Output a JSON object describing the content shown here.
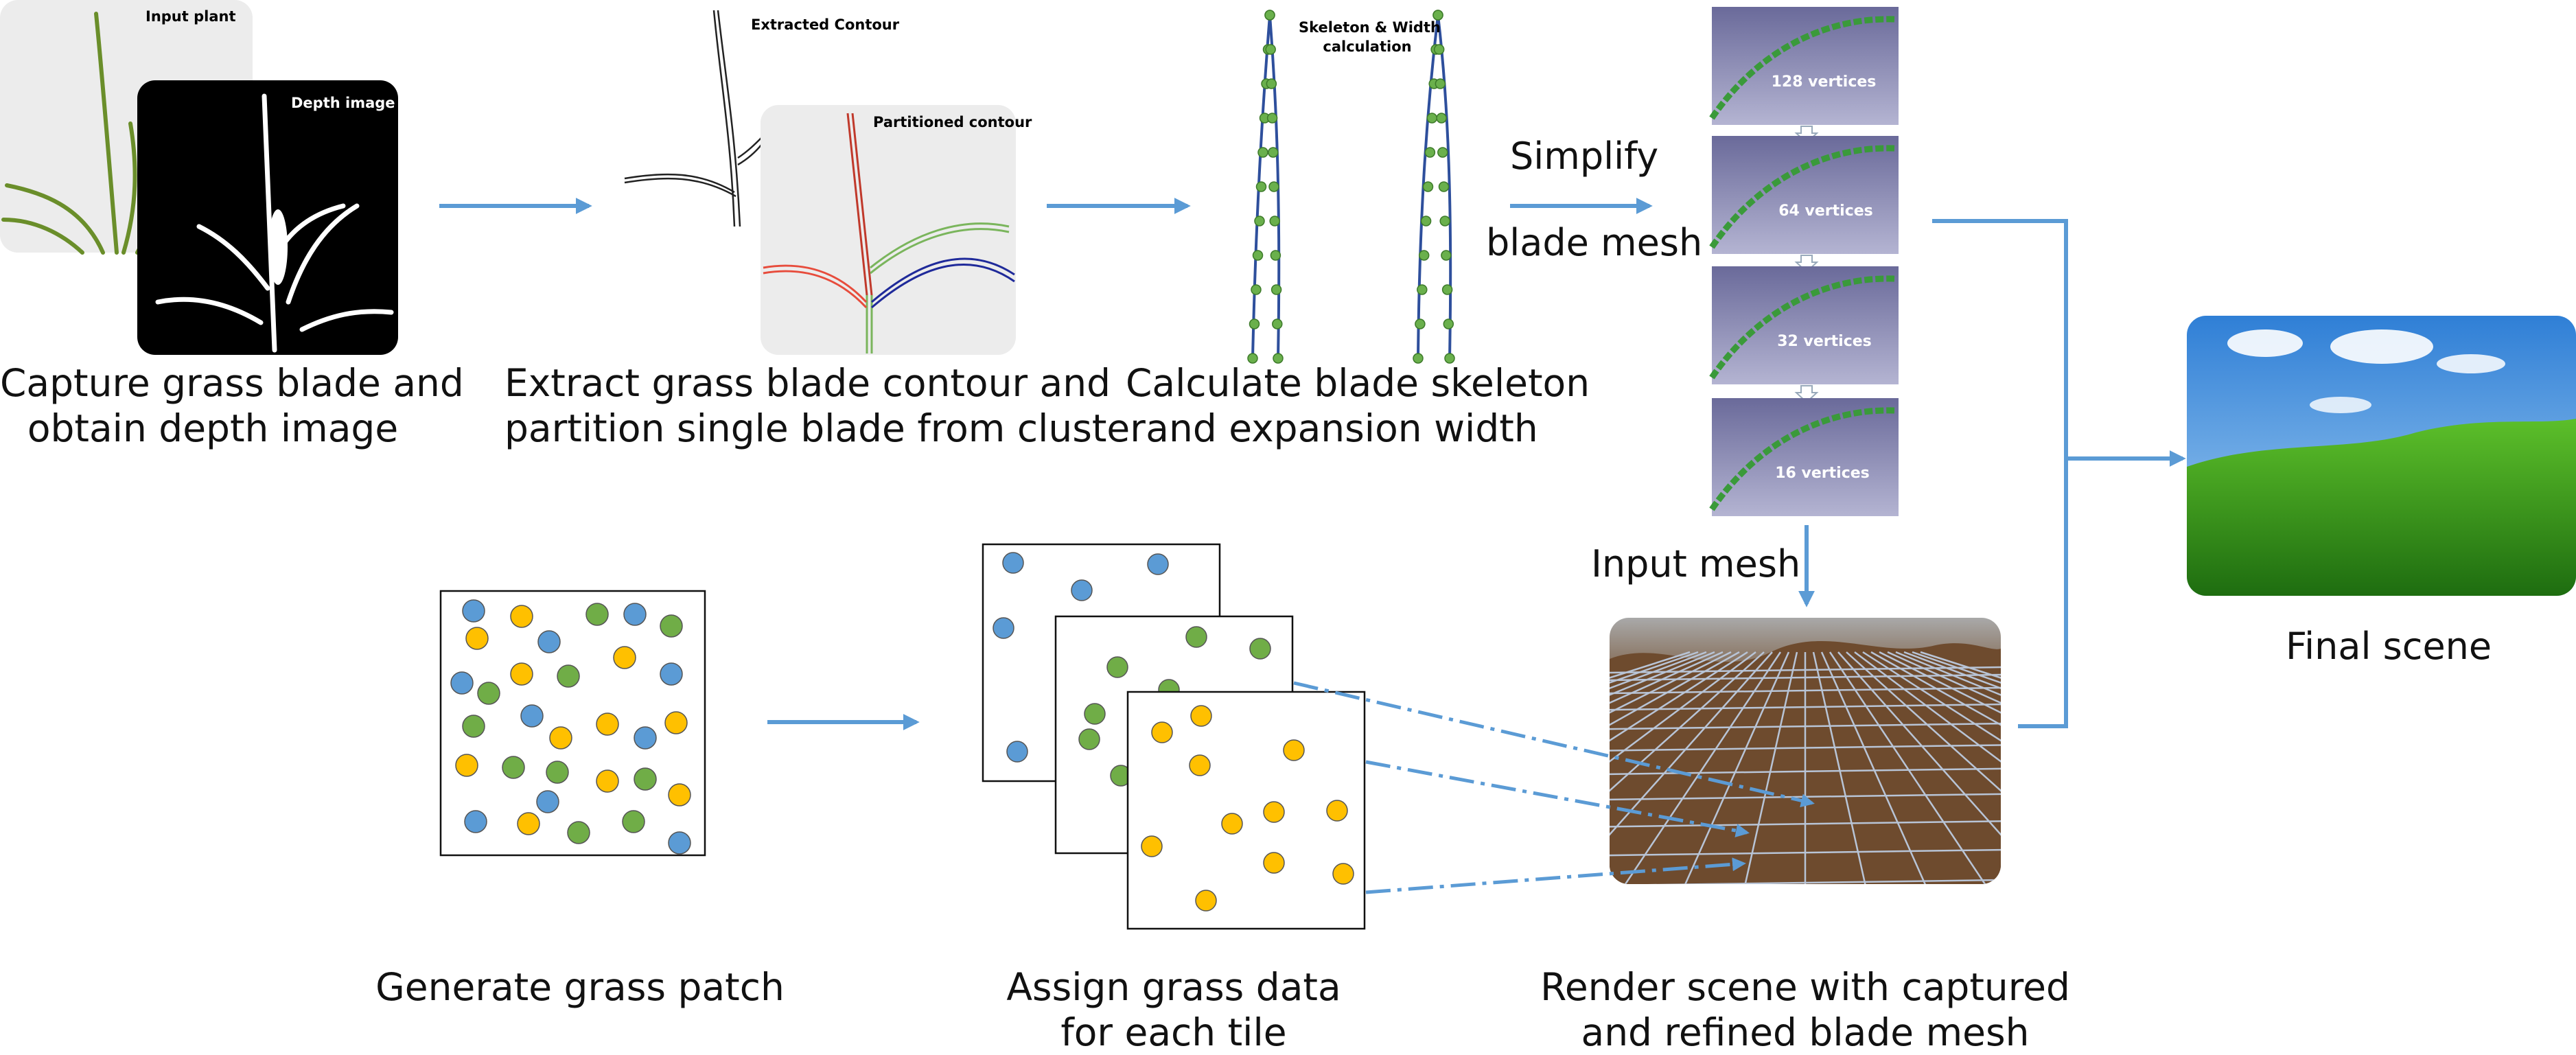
{
  "stage1": {
    "input_plant_label": "Input plant",
    "depth_image_label": "Depth image",
    "caption_line1": "Capture grass blade and",
    "caption_line2": "obtain depth image"
  },
  "stage2": {
    "extracted_contour_label": "Extracted Contour",
    "partitioned_contour_label": "Partitioned contour",
    "caption_line1": "Extract grass blade contour and",
    "caption_line2": "partition single blade from cluster"
  },
  "stage3": {
    "skeleton_label_line1": "Skeleton & Width",
    "skeleton_label_line2": "calculation",
    "caption_line1": "Calculate blade skeleton",
    "caption_line2": "and expansion width"
  },
  "simplify": {
    "label_line1": "Simplify",
    "label_line2": "blade mesh",
    "levels": [
      "128 vertices",
      "64 vertices",
      "32 vertices",
      "16 vertices"
    ]
  },
  "input_mesh_label": "Input mesh",
  "final_scene_label": "Final scene",
  "patch": {
    "caption": "Generate grass patch"
  },
  "tiles": {
    "caption_line1": "Assign grass data",
    "caption_line2": "for each tile"
  },
  "render": {
    "caption_line1": "Render scene with captured",
    "caption_line2": "and refined blade mesh"
  },
  "colors": {
    "arrow": "#5b9bd5",
    "dot_blue": "#5b9bd5",
    "dot_green": "#70ad47",
    "dot_yellow": "#ffc000",
    "blade_green": "#3a9a3a",
    "depth_bg": "#000000"
  }
}
